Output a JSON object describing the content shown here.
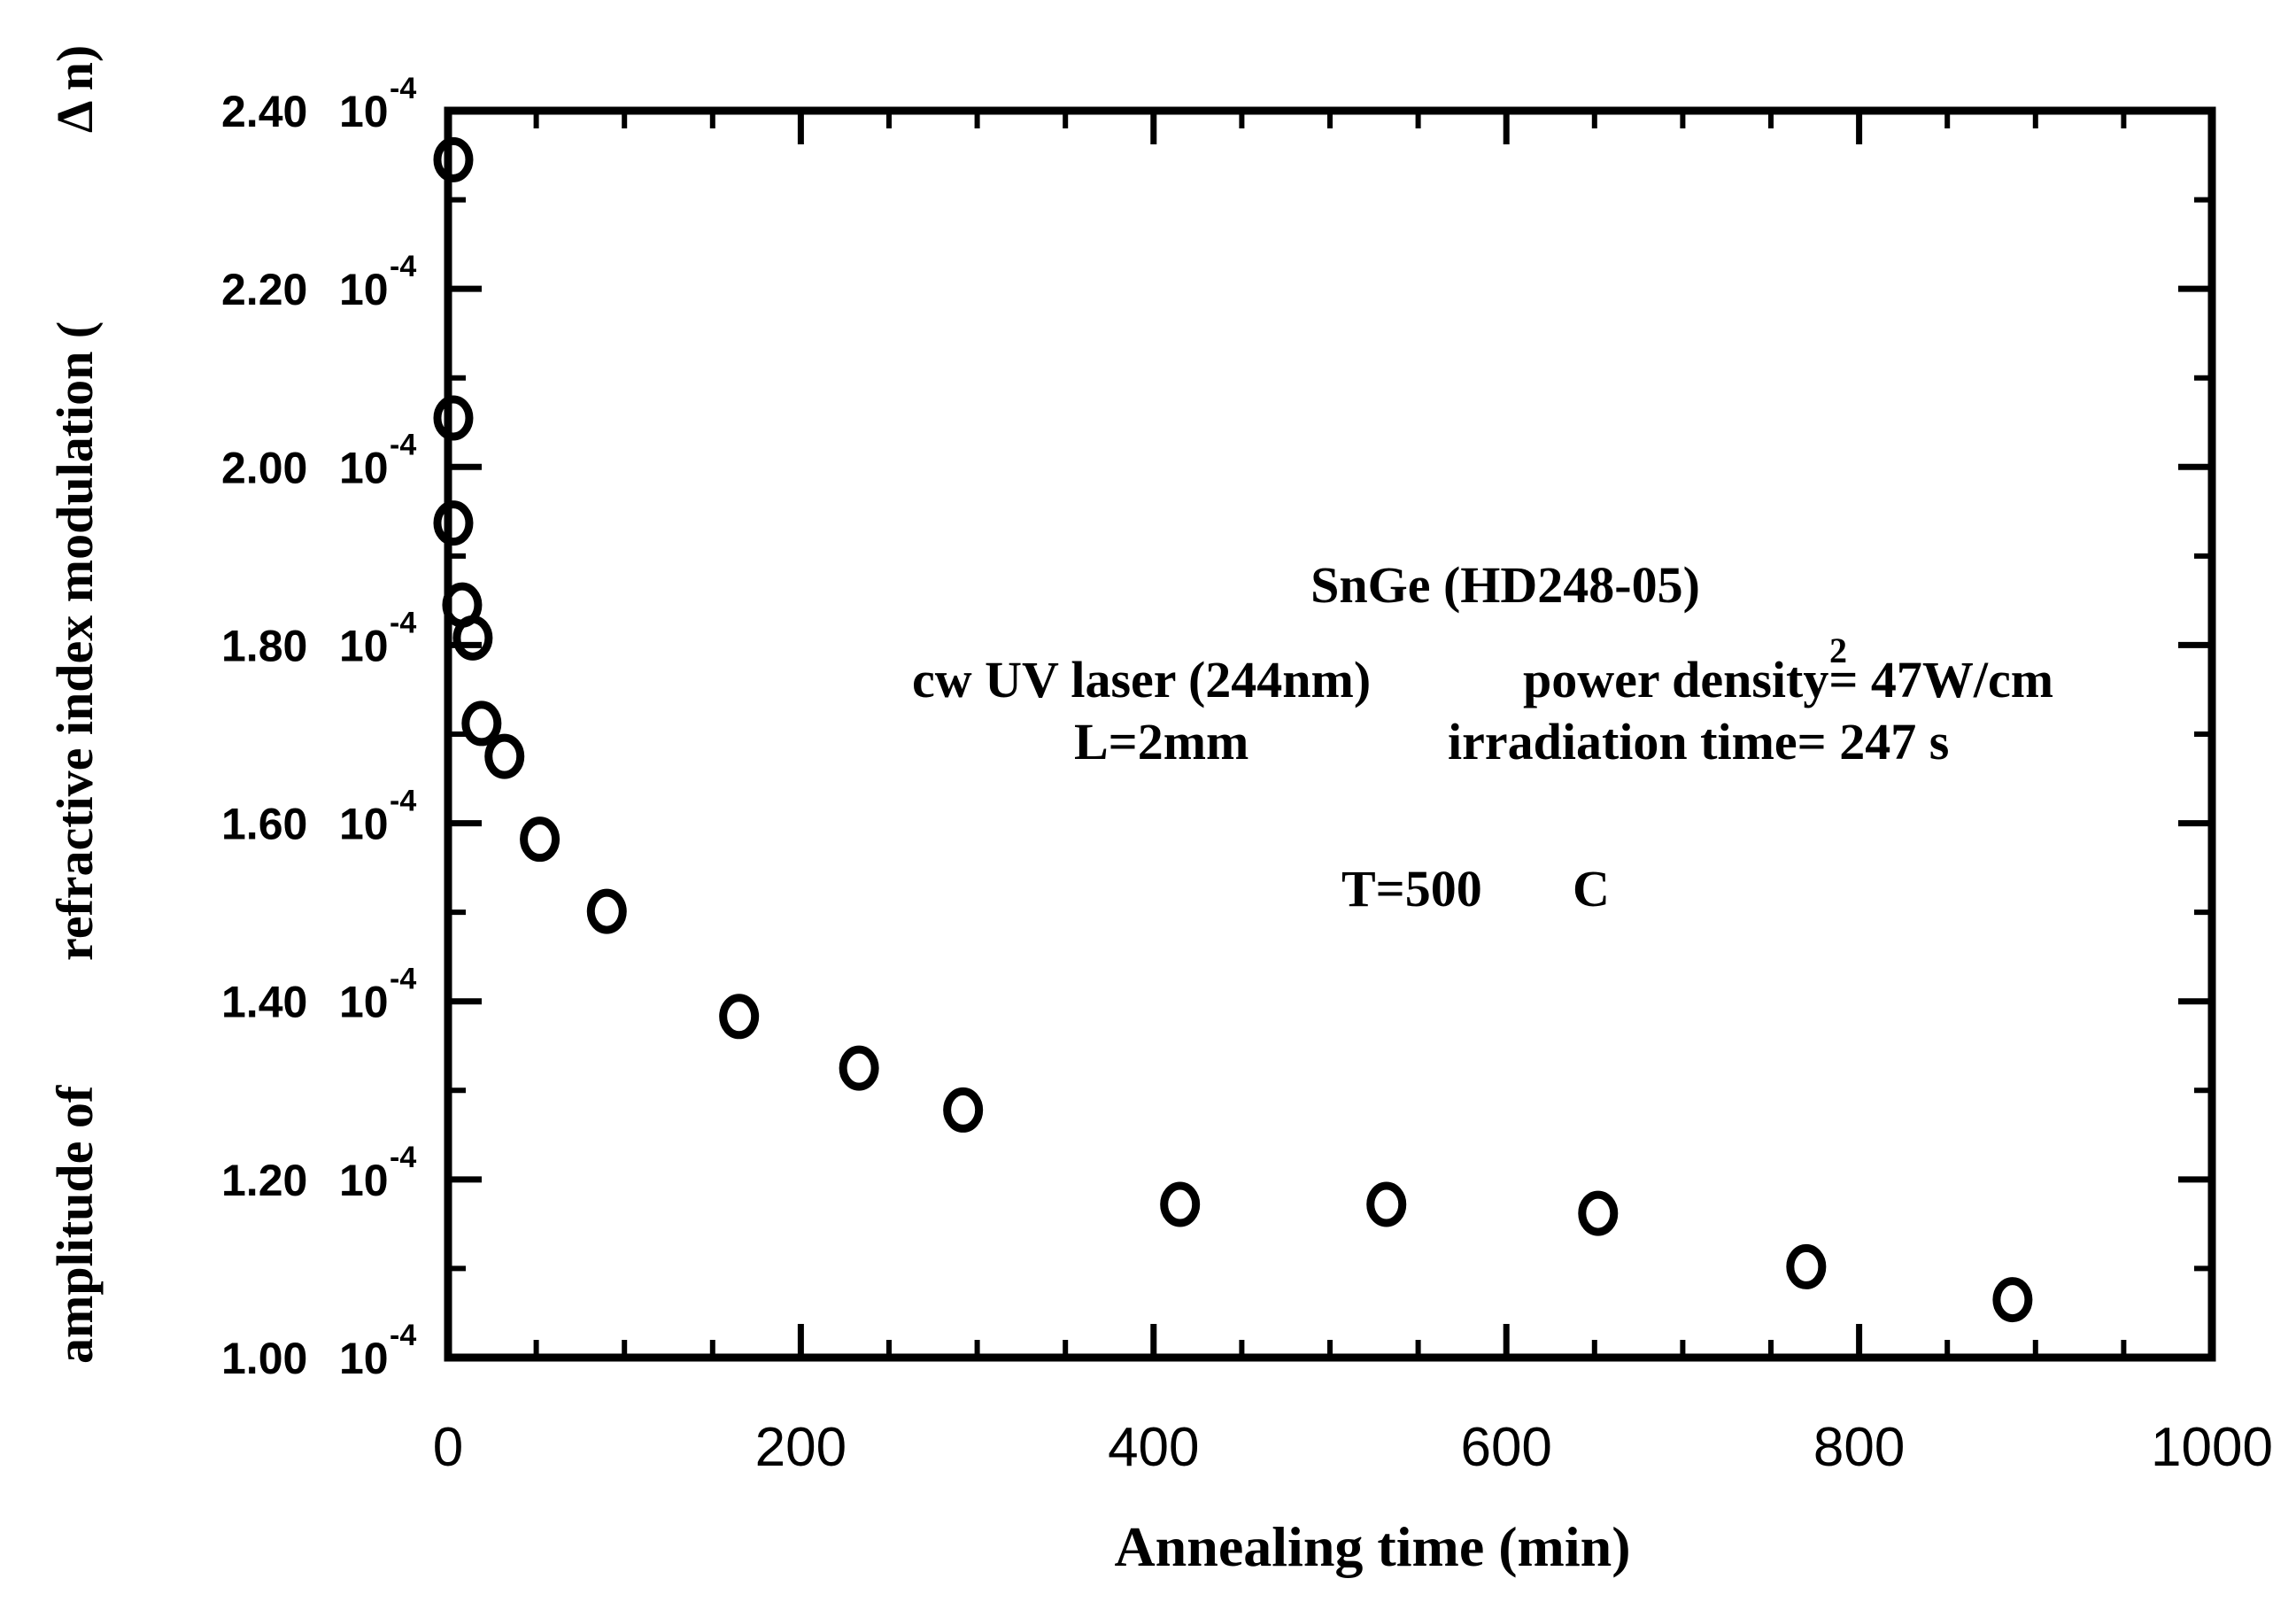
{
  "chart_data": {
    "type": "scatter",
    "title": "",
    "xlabel": "Annealing time (min)",
    "ylabel_prefix": "amplitude of",
    "ylabel_main": "refractive index modulation (",
    "ylabel_symbol": "Δ n)",
    "xlim": [
      0,
      1000
    ],
    "ylim": [
      0.0001,
      0.00024
    ],
    "x_ticks": [
      0,
      200,
      400,
      600,
      800,
      1000
    ],
    "x_tick_labels": [
      "0",
      "200",
      "400",
      "600",
      "800",
      "1000"
    ],
    "y_ticks": [
      0.0001,
      0.00012,
      0.00014,
      0.00016,
      0.00018,
      0.0002,
      0.00022,
      0.00024
    ],
    "y_tick_mantissas": [
      "1.00",
      "1.20",
      "1.40",
      "1.60",
      "1.80",
      "2.00",
      "2.20",
      "2.40"
    ],
    "y_tick_base": "10",
    "y_tick_exponent": "-4",
    "grid": false,
    "series": [
      {
        "name": "SnGe (HD248-05)",
        "marker": "open-circle",
        "color": "#000000",
        "x": [
          3,
          3,
          3,
          8,
          14,
          19,
          32,
          52,
          90,
          165,
          233,
          292,
          415,
          532,
          652,
          770,
          887
        ],
        "y": [
          0.0002345,
          0.0002055,
          0.0001937,
          0.0001845,
          0.0001808,
          0.0001712,
          0.0001675,
          0.0001582,
          0.0001501,
          0.0001383,
          0.0001325,
          0.0001278,
          0.0001172,
          0.0001172,
          0.0001162,
          0.0001102,
          0.0001065
        ]
      }
    ],
    "annotations": {
      "line1": "SnGe (HD248-05)",
      "line2_left": "cw UV laser (244nm)",
      "line2_right": "power density= 47W/cm",
      "line2_superscript": "2",
      "line3_left": "L=2mm",
      "line3_right": "irradiation time= 247 s",
      "line4_left": "T=500",
      "line4_right": "C"
    }
  }
}
